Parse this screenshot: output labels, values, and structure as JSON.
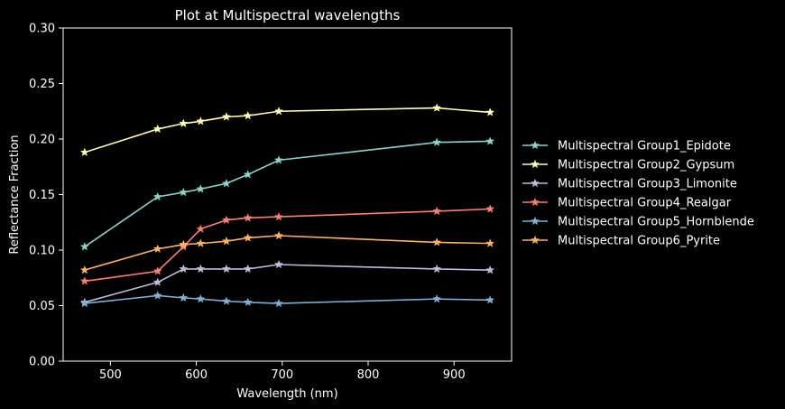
{
  "chart_data": {
    "type": "line",
    "title": "Plot at Multispectral wavelengths",
    "xlabel": "Wavelength (nm)",
    "ylabel": "Reflectance Fraction",
    "xlim": [
      445,
      967
    ],
    "ylim": [
      0.0,
      0.3
    ],
    "xticks": [
      500,
      600,
      700,
      800,
      900
    ],
    "yticks": [
      0.0,
      0.05,
      0.1,
      0.15,
      0.2,
      0.25,
      0.3
    ],
    "ytick_labels": [
      "0.00",
      "0.05",
      "0.10",
      "0.15",
      "0.20",
      "0.25",
      "0.30"
    ],
    "grid": false,
    "legend_position": "right-outside",
    "marker": "star",
    "x": [
      470,
      555,
      585,
      605,
      635,
      660,
      696,
      880,
      942
    ],
    "series": [
      {
        "name": "Multispectral Group1_Epidote",
        "color": "#8dd3c7",
        "values": [
          0.103,
          0.148,
          0.152,
          0.155,
          0.16,
          0.168,
          0.181,
          0.197,
          0.198
        ]
      },
      {
        "name": "Multispectral Group2_Gypsum",
        "color": "#feffb3",
        "values": [
          0.188,
          0.209,
          0.214,
          0.216,
          0.22,
          0.221,
          0.225,
          0.228,
          0.224
        ]
      },
      {
        "name": "Multispectral Group3_Limonite",
        "color": "#bfbbd9",
        "values": [
          0.053,
          0.071,
          0.083,
          0.083,
          0.083,
          0.083,
          0.087,
          0.083,
          0.082
        ]
      },
      {
        "name": "Multispectral Group4_Realgar",
        "color": "#fa8174",
        "values": [
          0.072,
          0.081,
          0.103,
          0.119,
          0.127,
          0.129,
          0.13,
          0.135,
          0.137
        ]
      },
      {
        "name": "Multispectral Group5_Hornblende",
        "color": "#81b1d2",
        "values": [
          0.052,
          0.059,
          0.057,
          0.056,
          0.054,
          0.053,
          0.052,
          0.056,
          0.055
        ]
      },
      {
        "name": "Multispectral Group6_Pyrite",
        "color": "#fdb462",
        "values": [
          0.082,
          0.101,
          0.105,
          0.106,
          0.108,
          0.111,
          0.113,
          0.107,
          0.106
        ]
      }
    ]
  }
}
